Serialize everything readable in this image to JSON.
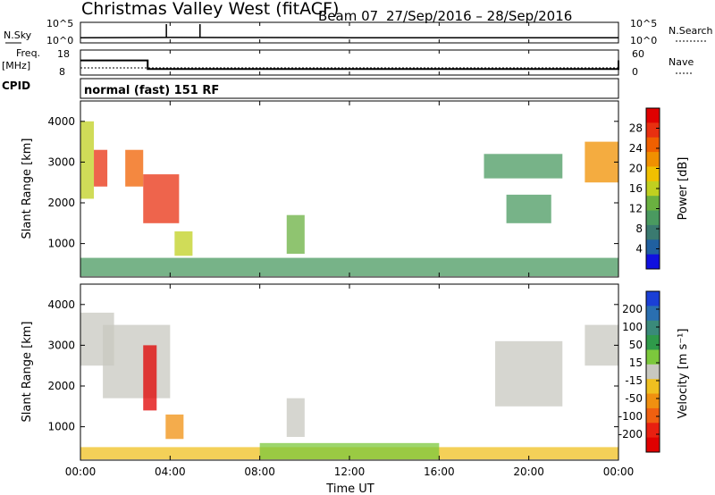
{
  "header": {
    "station": "Christmas Valley West (fitACF)",
    "beam": "Beam 07",
    "dates": "27/Sep/2016 – 28/Sep/2016"
  },
  "noise_panel": {
    "left_label": "N.Sky",
    "right_label": "N.Search",
    "left_ticks": [
      "10^5",
      "10^0"
    ],
    "right_ticks": [
      "10^5",
      "10^0"
    ]
  },
  "freq_panel": {
    "left_label_1": "Freq.",
    "left_label_2": "[MHz]",
    "left_ticks": [
      "18",
      "8"
    ],
    "right_label": "Nave",
    "right_ticks": [
      "60",
      "0"
    ]
  },
  "cpid_panel": {
    "label": "CPID",
    "text": "normal (fast) 151 RF"
  },
  "axes": {
    "xlabel": "Time UT",
    "ylabel": "Slant Range [km]",
    "x_ticks": [
      "00:00",
      "04:00",
      "08:00",
      "12:00",
      "16:00",
      "20:00",
      "00:00"
    ],
    "y_ticks": [
      "1000",
      "2000",
      "3000",
      "4000"
    ]
  },
  "colorbars": {
    "power": {
      "label": "Power [dB]",
      "ticks": [
        "4",
        "8",
        "12",
        "16",
        "20",
        "24",
        "28"
      ],
      "colors": [
        "#1010e0",
        "#2060a0",
        "#3a7a70",
        "#4a9a60",
        "#6ab040",
        "#c0d020",
        "#f0c000",
        "#f09000",
        "#f06000",
        "#e83010",
        "#e00000"
      ]
    },
    "velocity": {
      "label": "Velocity [m s⁻¹]",
      "ticks": [
        "200",
        "100",
        "50",
        "15",
        "-15",
        "-50",
        "-100",
        "-200"
      ],
      "colors": [
        "#1b3fd6",
        "#2a6fb0",
        "#3a8a7a",
        "#2f9a4a",
        "#7cc83c",
        "#c8c8c0",
        "#f0c020",
        "#f09010",
        "#f06010",
        "#e82010",
        "#e00000"
      ]
    }
  },
  "chart_data": [
    {
      "type": "line",
      "title": "N.Sky / N.Search",
      "x": [
        "00:00",
        "04:00",
        "08:00",
        "12:00",
        "16:00",
        "20:00",
        "00:00"
      ],
      "series": [
        {
          "name": "N.Sky",
          "values": [
            10,
            12,
            11,
            10,
            10,
            10,
            10
          ]
        }
      ],
      "spikes": [
        {
          "x": "03:50",
          "value": 100000
        },
        {
          "x": "05:20",
          "value": 100000
        }
      ],
      "ylim": [
        1,
        100000
      ],
      "yscale": "log"
    },
    {
      "type": "line",
      "title": "Freq. [MHz] / Nave",
      "x": [
        "00:00",
        "03:00",
        "15:00",
        "24:00"
      ],
      "series": [
        {
          "name": "Freq.",
          "values": [
            14,
            10,
            10,
            14
          ]
        },
        {
          "name": "Nave",
          "values": [
            15,
            15,
            15,
            15
          ]
        }
      ],
      "ylim": [
        8,
        18
      ],
      "y2lim": [
        0,
        60
      ]
    },
    {
      "type": "heatmap",
      "title": "Power [dB]",
      "xlabel": "Time UT",
      "ylabel": "Slant Range [km]",
      "xlim": [
        0,
        24
      ],
      "ylim": [
        180,
        4500
      ],
      "zlim": [
        0,
        30
      ],
      "patches": [
        {
          "t": [
            0.0,
            0.6
          ],
          "r": [
            2100,
            4000
          ],
          "power": 14
        },
        {
          "t": [
            0.6,
            1.2
          ],
          "r": [
            2400,
            3300
          ],
          "power": 26
        },
        {
          "t": [
            2.0,
            2.8
          ],
          "r": [
            2400,
            3300
          ],
          "power": 24
        },
        {
          "t": [
            2.8,
            4.4
          ],
          "r": [
            1500,
            2700
          ],
          "power": 27
        },
        {
          "t": [
            4.2,
            5.0
          ],
          "r": [
            700,
            1300
          ],
          "power": 14
        },
        {
          "t": [
            9.2,
            10.0
          ],
          "r": [
            750,
            1700
          ],
          "power": 12
        },
        {
          "t": [
            18.0,
            21.5
          ],
          "r": [
            2600,
            3200
          ],
          "power": 10
        },
        {
          "t": [
            19.0,
            21.0
          ],
          "r": [
            1500,
            2200
          ],
          "power": 10
        },
        {
          "t": [
            22.5,
            24.0
          ],
          "r": [
            2500,
            3500
          ],
          "power": 22
        },
        {
          "t": [
            0.0,
            24.0
          ],
          "r": [
            200,
            650
          ],
          "power": 10
        }
      ]
    },
    {
      "type": "heatmap",
      "title": "Velocity [m s⁻¹]",
      "xlabel": "Time UT",
      "ylabel": "Slant Range [km]",
      "xlim": [
        0,
        24
      ],
      "ylim": [
        180,
        4500
      ],
      "zlim": [
        -200,
        200
      ],
      "patches": [
        {
          "t": [
            0.0,
            1.5
          ],
          "r": [
            2500,
            3800
          ],
          "velocity": 0
        },
        {
          "t": [
            1.0,
            4.0
          ],
          "r": [
            1700,
            3500
          ],
          "velocity": 0
        },
        {
          "t": [
            2.8,
            3.4
          ],
          "r": [
            1400,
            3000
          ],
          "velocity": -200
        },
        {
          "t": [
            3.8,
            4.6
          ],
          "r": [
            700,
            1300
          ],
          "velocity": -70
        },
        {
          "t": [
            9.2,
            10.0
          ],
          "r": [
            750,
            1700
          ],
          "velocity": 0
        },
        {
          "t": [
            18.5,
            21.5
          ],
          "r": [
            1500,
            3100
          ],
          "velocity": 0
        },
        {
          "t": [
            22.5,
            24.0
          ],
          "r": [
            2500,
            3500
          ],
          "velocity": 0
        },
        {
          "t": [
            0.0,
            24.0
          ],
          "r": [
            200,
            500
          ],
          "velocity": -30
        },
        {
          "t": [
            8.0,
            16.0
          ],
          "r": [
            200,
            600
          ],
          "velocity": 30
        }
      ]
    }
  ]
}
